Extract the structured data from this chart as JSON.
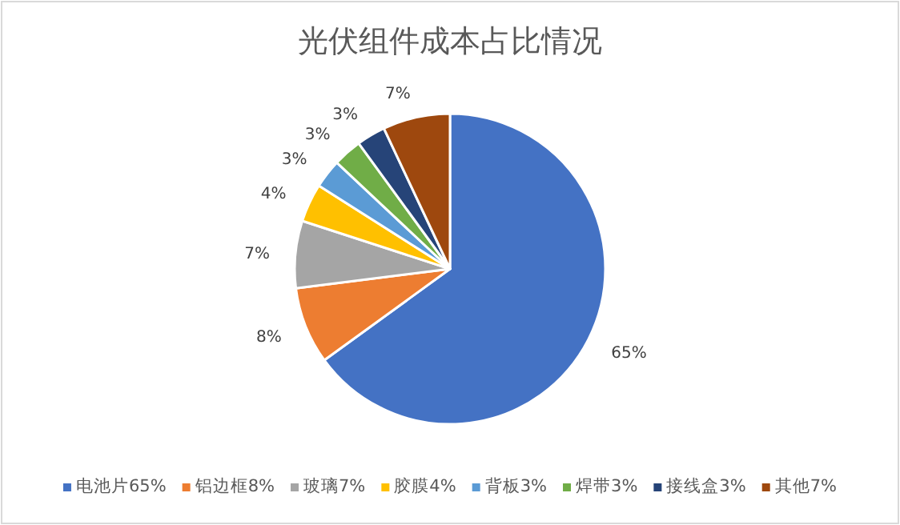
{
  "chart_data": {
    "type": "pie",
    "title": "光伏组件成本占比情况",
    "categories": [
      "电池片65%",
      "铝边框8%",
      "玻璃7%",
      "胶膜4%",
      "背板3%",
      "焊带3%",
      "接线盒3%",
      "其他7%"
    ],
    "values": [
      65,
      8,
      7,
      4,
      3,
      3,
      3,
      7
    ],
    "colors": [
      "#4472c4",
      "#ed7d31",
      "#a5a5a5",
      "#ffc000",
      "#5b9bd5",
      "#70ad47",
      "#264478",
      "#9e480e"
    ],
    "value_labels": [
      "65%",
      "8%",
      "7%",
      "4%",
      "3%",
      "3%",
      "3%",
      "7%"
    ],
    "legend": "bottom"
  }
}
